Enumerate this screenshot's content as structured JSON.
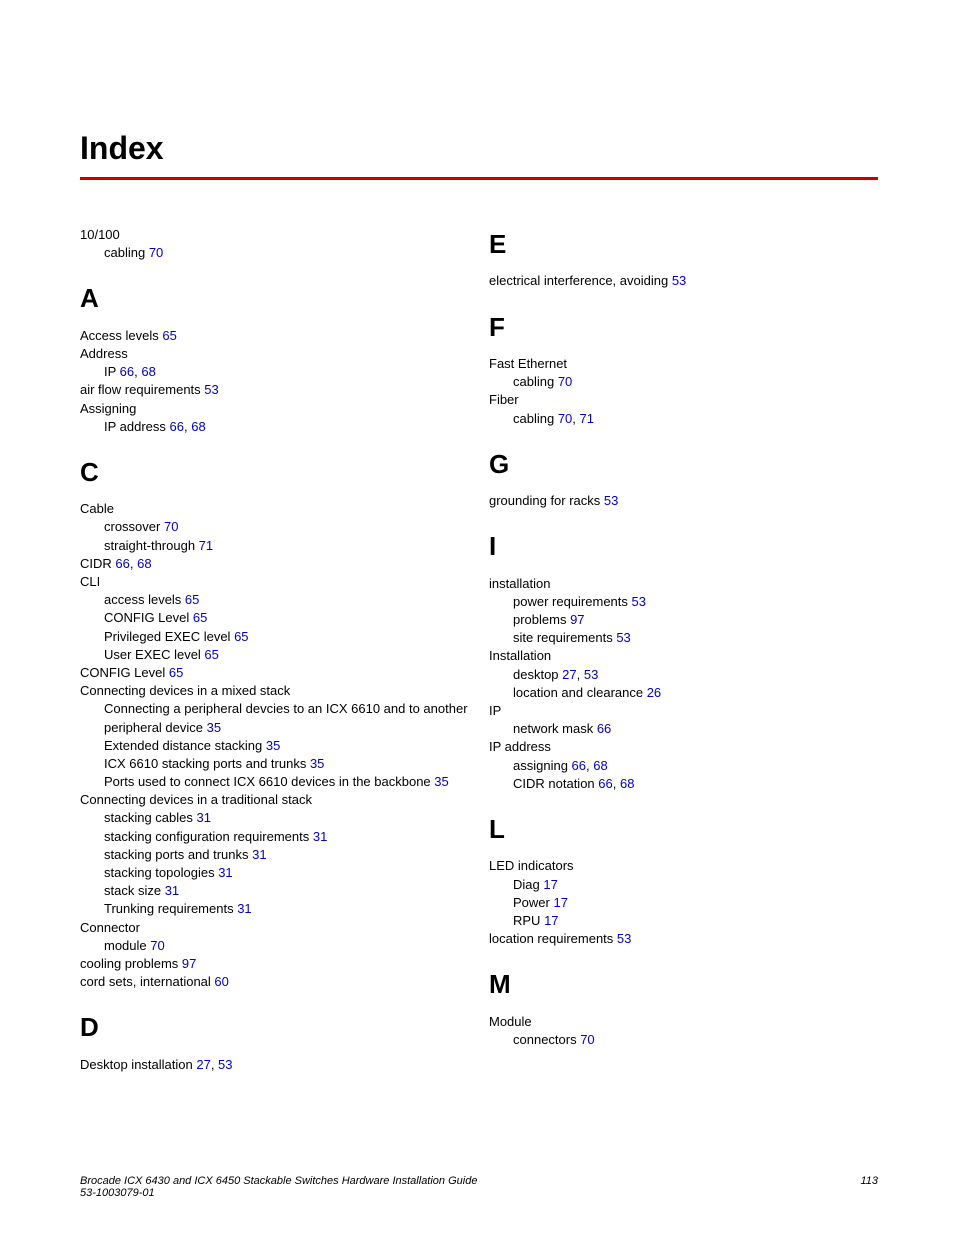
{
  "title": "Index",
  "colors": {
    "rule": "#cc0000",
    "link": "#0000cc",
    "text": "#000000",
    "background": "#ffffff"
  },
  "typography": {
    "body_font": "Arial, Helvetica, sans-serif",
    "title_size_pt": 24,
    "letter_size_pt": 20,
    "entry_size_pt": 10,
    "footer_size_pt": 8
  },
  "columns": [
    {
      "sections": [
        {
          "letter": "",
          "entries": [
            {
              "level": 0,
              "text": "10/100",
              "refs": []
            },
            {
              "level": 1,
              "text": "cabling",
              "refs": [
                "70"
              ]
            }
          ]
        },
        {
          "letter": "A",
          "entries": [
            {
              "level": 0,
              "text": "Access levels",
              "refs": [
                "65"
              ]
            },
            {
              "level": 0,
              "text": "Address",
              "refs": []
            },
            {
              "level": 1,
              "text": "IP",
              "refs": [
                "66",
                "68"
              ]
            },
            {
              "level": 0,
              "text": "air flow requirements",
              "refs": [
                "53"
              ]
            },
            {
              "level": 0,
              "text": "Assigning",
              "refs": []
            },
            {
              "level": 1,
              "text": "IP address",
              "refs": [
                "66",
                "68"
              ]
            }
          ]
        },
        {
          "letter": "C",
          "entries": [
            {
              "level": 0,
              "text": "Cable",
              "refs": []
            },
            {
              "level": 1,
              "text": "crossover",
              "refs": [
                "70"
              ]
            },
            {
              "level": 1,
              "text": "straight-through",
              "refs": [
                "71"
              ]
            },
            {
              "level": 0,
              "text": "CIDR",
              "refs": [
                "66",
                "68"
              ]
            },
            {
              "level": 0,
              "text": "CLI",
              "refs": []
            },
            {
              "level": 1,
              "text": "access levels",
              "refs": [
                "65"
              ]
            },
            {
              "level": 1,
              "text": "CONFIG Level",
              "refs": [
                "65"
              ]
            },
            {
              "level": 1,
              "text": "Privileged EXEC level",
              "refs": [
                "65"
              ]
            },
            {
              "level": 1,
              "text": "User EXEC level",
              "refs": [
                "65"
              ]
            },
            {
              "level": 0,
              "text": "CONFIG Level",
              "refs": [
                "65"
              ]
            },
            {
              "level": 0,
              "text": "Connecting devices in a mixed stack",
              "refs": []
            },
            {
              "level": 1,
              "text": "Connecting a peripheral devcies to an ICX 6610 and to another peripheral device",
              "refs": [
                "35"
              ]
            },
            {
              "level": 1,
              "text": "Extended distance stacking",
              "refs": [
                "35"
              ]
            },
            {
              "level": 1,
              "text": "ICX 6610 stacking ports and trunks",
              "refs": [
                "35"
              ]
            },
            {
              "level": 1,
              "text": "Ports used to connect ICX 6610 devices in the backbone",
              "refs": [
                "35"
              ]
            },
            {
              "level": 0,
              "text": "Connecting devices in a traditional stack",
              "refs": []
            },
            {
              "level": 1,
              "text": "stacking cables",
              "refs": [
                "31"
              ]
            },
            {
              "level": 1,
              "text": "stacking configuration requirements",
              "refs": [
                "31"
              ]
            },
            {
              "level": 1,
              "text": "stacking ports and trunks",
              "refs": [
                "31"
              ]
            },
            {
              "level": 1,
              "text": "stacking topologies",
              "refs": [
                "31"
              ]
            },
            {
              "level": 1,
              "text": "stack size",
              "refs": [
                "31"
              ]
            },
            {
              "level": 1,
              "text": "Trunking requirements",
              "refs": [
                "31"
              ]
            },
            {
              "level": 0,
              "text": "Connector",
              "refs": []
            },
            {
              "level": 1,
              "text": "module",
              "refs": [
                "70"
              ]
            },
            {
              "level": 0,
              "text": "cooling problems",
              "refs": [
                "97"
              ]
            },
            {
              "level": 0,
              "text": "cord sets, international",
              "refs": [
                "60"
              ]
            }
          ]
        },
        {
          "letter": "D",
          "entries": [
            {
              "level": 0,
              "text": "Desktop installation",
              "refs": [
                "27",
                "53"
              ]
            }
          ]
        }
      ]
    },
    {
      "sections": [
        {
          "letter": "E",
          "entries": [
            {
              "level": 0,
              "text": "electrical interference, avoiding",
              "refs": [
                "53"
              ]
            }
          ]
        },
        {
          "letter": "F",
          "entries": [
            {
              "level": 0,
              "text": "Fast Ethernet",
              "refs": []
            },
            {
              "level": 1,
              "text": "cabling",
              "refs": [
                "70"
              ]
            },
            {
              "level": 0,
              "text": "Fiber",
              "refs": []
            },
            {
              "level": 1,
              "text": "cabling",
              "refs": [
                "70",
                "71"
              ]
            }
          ]
        },
        {
          "letter": "G",
          "entries": [
            {
              "level": 0,
              "text": "grounding for racks",
              "refs": [
                "53"
              ]
            }
          ]
        },
        {
          "letter": "I",
          "entries": [
            {
              "level": 0,
              "text": "installation",
              "refs": []
            },
            {
              "level": 1,
              "text": "power requirements",
              "refs": [
                "53"
              ]
            },
            {
              "level": 1,
              "text": "problems",
              "refs": [
                "97"
              ]
            },
            {
              "level": 1,
              "text": "site requirements",
              "refs": [
                "53"
              ]
            },
            {
              "level": 0,
              "text": "Installation",
              "refs": []
            },
            {
              "level": 1,
              "text": "desktop",
              "refs": [
                "27",
                "53"
              ]
            },
            {
              "level": 1,
              "text": "location and clearance",
              "refs": [
                "26"
              ]
            },
            {
              "level": 0,
              "text": "IP",
              "refs": []
            },
            {
              "level": 1,
              "text": "network mask",
              "refs": [
                "66"
              ]
            },
            {
              "level": 0,
              "text": "IP address",
              "refs": []
            },
            {
              "level": 1,
              "text": "assigning",
              "refs": [
                "66",
                "68"
              ]
            },
            {
              "level": 1,
              "text": "CIDR notation",
              "refs": [
                "66",
                "68"
              ]
            }
          ]
        },
        {
          "letter": "L",
          "entries": [
            {
              "level": 0,
              "text": "LED indicators",
              "refs": []
            },
            {
              "level": 1,
              "text": "Diag",
              "refs": [
                "17"
              ]
            },
            {
              "level": 1,
              "text": "Power",
              "refs": [
                "17"
              ]
            },
            {
              "level": 1,
              "text": "RPU",
              "refs": [
                "17"
              ]
            },
            {
              "level": 0,
              "text": "location requirements",
              "refs": [
                "53"
              ]
            }
          ]
        },
        {
          "letter": "M",
          "entries": [
            {
              "level": 0,
              "text": "Module",
              "refs": []
            },
            {
              "level": 1,
              "text": "connectors",
              "refs": [
                "70"
              ]
            }
          ]
        }
      ]
    }
  ],
  "footer": {
    "line1": "Brocade ICX 6430 and ICX 6450 Stackable Switches Hardware Installation Guide",
    "line2": "53-1003079-01",
    "pagenum": "113"
  }
}
